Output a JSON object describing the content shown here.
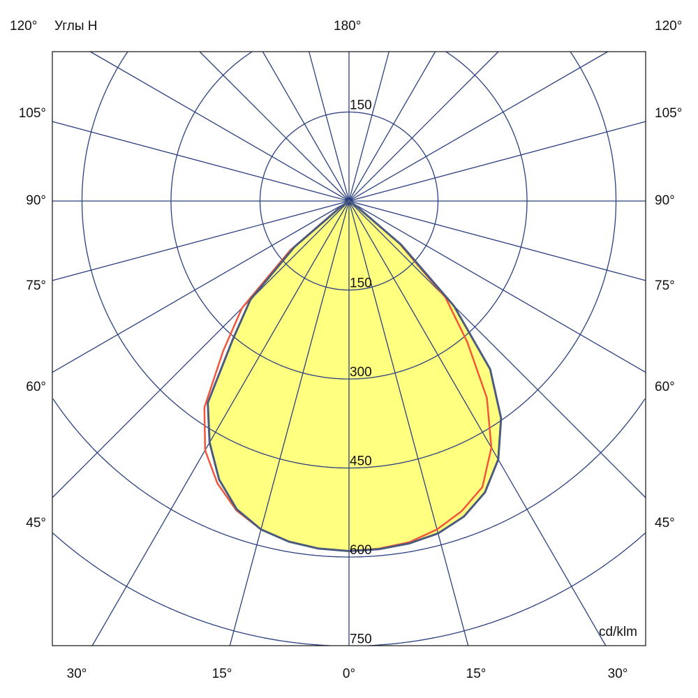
{
  "chart_data": {
    "type": "polar-line",
    "title": "",
    "plane_label": "Углы H",
    "unit_label": "cd/klm",
    "radial_ticks": [
      150,
      300,
      450,
      600,
      750
    ],
    "radial_tick_labels": {
      "top": "150",
      "bottom": [
        "150",
        "300",
        "450",
        "600",
        "750"
      ]
    },
    "angular_grid_step_deg": 15,
    "angle_labels": {
      "top": "180°",
      "left": [
        "120°",
        "105°",
        "90°",
        "75°",
        "60°",
        "45°"
      ],
      "right": [
        "120°",
        "105°",
        "90°",
        "75°",
        "60°",
        "45°"
      ],
      "bottom": [
        "30°",
        "15°",
        "0°",
        "15°",
        "30°"
      ]
    },
    "angles_deg": [
      -90,
      -85,
      -80,
      -75,
      -70,
      -65,
      -60,
      -55,
      -50,
      -45,
      -40,
      -35,
      -30,
      -25,
      -20,
      -15,
      -10,
      -5,
      0,
      5,
      10,
      15,
      20,
      25,
      30,
      35,
      40,
      45,
      50,
      55,
      60,
      65,
      70,
      75,
      80,
      85,
      90
    ],
    "series": [
      {
        "color": "#4b5b7e",
        "filled": true,
        "fill": "#ffff80",
        "values": [
          0,
          0,
          0,
          0,
          0,
          0,
          0,
          15,
          120,
          235,
          305,
          415,
          470,
          518,
          553,
          573,
          583,
          588,
          590,
          589,
          586,
          580,
          566,
          542,
          503,
          447,
          370,
          250,
          115,
          15,
          0,
          0,
          0,
          0,
          0,
          0,
          0
        ]
      },
      {
        "color": "#f0563a",
        "filled": false,
        "values": [
          0,
          0,
          0,
          0,
          0,
          0,
          0,
          20,
          130,
          255,
          330,
          425,
          485,
          525,
          555,
          573,
          583,
          588,
          590,
          588,
          584,
          573,
          556,
          532,
          480,
          405,
          310,
          230,
          110,
          15,
          0,
          0,
          0,
          0,
          0,
          0,
          0
        ]
      }
    ],
    "grid": true,
    "grid_color": "#2b4080"
  }
}
